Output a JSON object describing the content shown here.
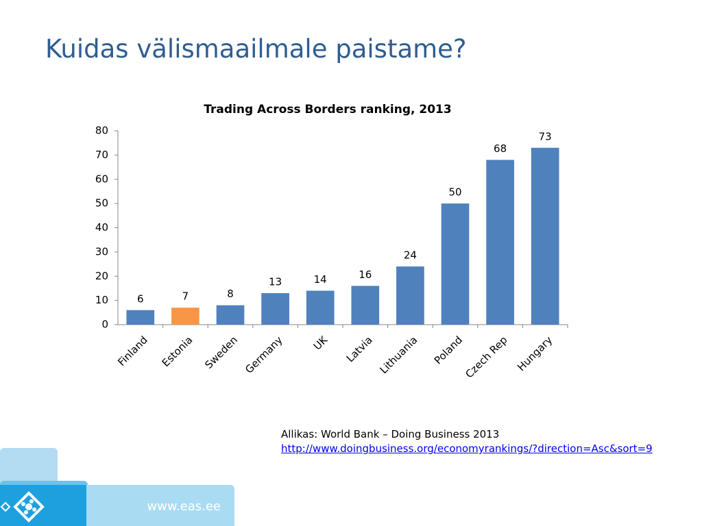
{
  "slide_title": "Kuidas välismaailmale paistame?",
  "chart_data": {
    "type": "bar",
    "title": "Trading Across Borders ranking, 2013",
    "categories": [
      "Finland",
      "Estonia",
      "Sweden",
      "Germany",
      "UK",
      "Latvia",
      "Lithuania",
      "Poland",
      "Czech Rep",
      "Hungary"
    ],
    "values": [
      6,
      7,
      8,
      13,
      14,
      16,
      24,
      50,
      68,
      73
    ],
    "colors": [
      "#4f81bd",
      "#f79646",
      "#4f81bd",
      "#4f81bd",
      "#4f81bd",
      "#4f81bd",
      "#4f81bd",
      "#4f81bd",
      "#4f81bd",
      "#4f81bd"
    ],
    "ylim": [
      0,
      80
    ],
    "yticks": [
      0,
      10,
      20,
      30,
      40,
      50,
      60,
      70,
      80
    ],
    "grid": false
  },
  "source": {
    "text": "Allikas: World Bank – Doing Business 2013",
    "link": "http://www.doingbusiness.org/economyrankings/?direction=Asc&sort=9"
  },
  "footer": {
    "url": "www.eas.ee"
  }
}
